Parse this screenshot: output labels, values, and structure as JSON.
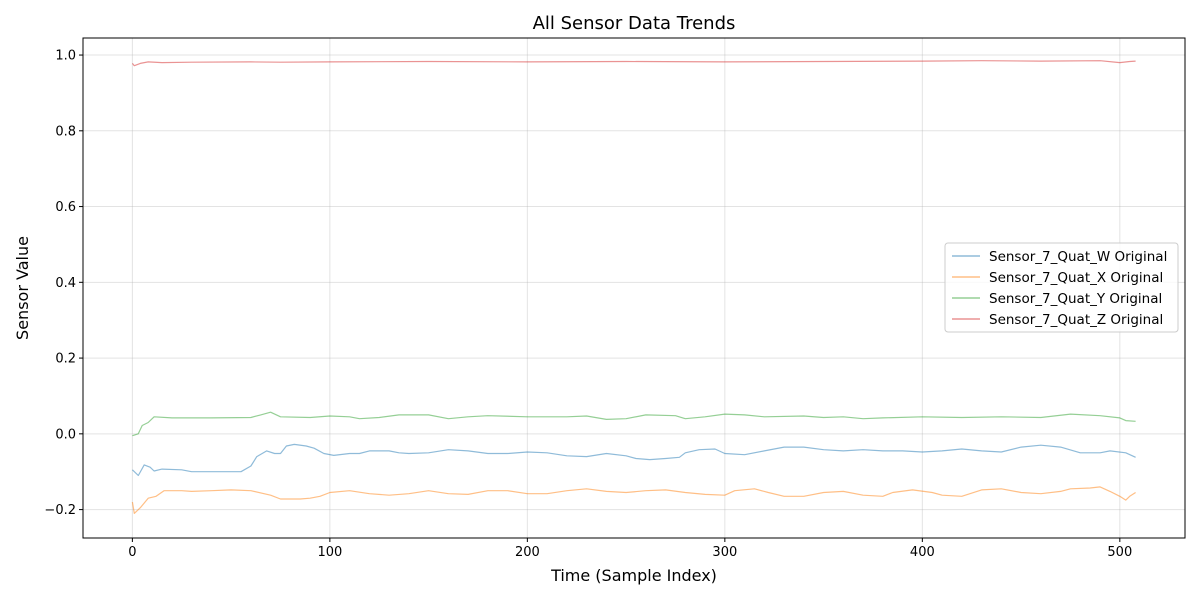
{
  "chart_data": {
    "type": "line",
    "title": "All Sensor Data Trends",
    "xlabel": "Time (Sample Index)",
    "ylabel": "Sensor Value",
    "xlim": [
      -25,
      533
    ],
    "ylim": [
      -0.275,
      1.045
    ],
    "xticks": [
      0,
      100,
      200,
      300,
      400,
      500
    ],
    "yticks": [
      -0.2,
      0.0,
      0.2,
      0.4,
      0.6,
      0.8,
      1.0
    ],
    "ytick_labels": [
      "−0.2",
      "0.0",
      "0.2",
      "0.4",
      "0.6",
      "0.8",
      "1.0"
    ],
    "grid": true,
    "legend_position": "center-right",
    "series": [
      {
        "name": "Sensor_7_Quat_W Original",
        "color": "#1f77b4",
        "points": [
          [
            0,
            -0.095
          ],
          [
            3,
            -0.11
          ],
          [
            6,
            -0.082
          ],
          [
            9,
            -0.088
          ],
          [
            11,
            -0.098
          ],
          [
            15,
            -0.093
          ],
          [
            25,
            -0.095
          ],
          [
            30,
            -0.1
          ],
          [
            40,
            -0.1
          ],
          [
            55,
            -0.1
          ],
          [
            60,
            -0.085
          ],
          [
            63,
            -0.06
          ],
          [
            68,
            -0.045
          ],
          [
            72,
            -0.052
          ],
          [
            75,
            -0.052
          ],
          [
            78,
            -0.032
          ],
          [
            82,
            -0.028
          ],
          [
            88,
            -0.032
          ],
          [
            92,
            -0.038
          ],
          [
            97,
            -0.052
          ],
          [
            102,
            -0.057
          ],
          [
            110,
            -0.052
          ],
          [
            115,
            -0.052
          ],
          [
            120,
            -0.045
          ],
          [
            130,
            -0.045
          ],
          [
            135,
            -0.05
          ],
          [
            140,
            -0.052
          ],
          [
            150,
            -0.05
          ],
          [
            160,
            -0.042
          ],
          [
            170,
            -0.045
          ],
          [
            180,
            -0.052
          ],
          [
            190,
            -0.052
          ],
          [
            200,
            -0.048
          ],
          [
            210,
            -0.05
          ],
          [
            220,
            -0.058
          ],
          [
            230,
            -0.06
          ],
          [
            240,
            -0.052
          ],
          [
            250,
            -0.058
          ],
          [
            255,
            -0.065
          ],
          [
            262,
            -0.068
          ],
          [
            270,
            -0.065
          ],
          [
            277,
            -0.062
          ],
          [
            280,
            -0.05
          ],
          [
            287,
            -0.042
          ],
          [
            295,
            -0.04
          ],
          [
            300,
            -0.052
          ],
          [
            310,
            -0.055
          ],
          [
            320,
            -0.045
          ],
          [
            330,
            -0.035
          ],
          [
            340,
            -0.035
          ],
          [
            350,
            -0.042
          ],
          [
            360,
            -0.045
          ],
          [
            370,
            -0.042
          ],
          [
            380,
            -0.045
          ],
          [
            390,
            -0.045
          ],
          [
            400,
            -0.048
          ],
          [
            410,
            -0.045
          ],
          [
            420,
            -0.04
          ],
          [
            430,
            -0.045
          ],
          [
            440,
            -0.048
          ],
          [
            450,
            -0.035
          ],
          [
            460,
            -0.03
          ],
          [
            470,
            -0.035
          ],
          [
            480,
            -0.05
          ],
          [
            490,
            -0.05
          ],
          [
            495,
            -0.045
          ],
          [
            503,
            -0.05
          ],
          [
            508,
            -0.062
          ]
        ]
      },
      {
        "name": "Sensor_7_Quat_X Original",
        "color": "#ff7f0e",
        "points": [
          [
            0,
            -0.18
          ],
          [
            1,
            -0.21
          ],
          [
            4,
            -0.195
          ],
          [
            8,
            -0.17
          ],
          [
            12,
            -0.165
          ],
          [
            16,
            -0.15
          ],
          [
            25,
            -0.15
          ],
          [
            30,
            -0.152
          ],
          [
            40,
            -0.15
          ],
          [
            50,
            -0.148
          ],
          [
            60,
            -0.15
          ],
          [
            70,
            -0.162
          ],
          [
            75,
            -0.172
          ],
          [
            85,
            -0.172
          ],
          [
            90,
            -0.17
          ],
          [
            95,
            -0.165
          ],
          [
            100,
            -0.155
          ],
          [
            110,
            -0.15
          ],
          [
            120,
            -0.158
          ],
          [
            130,
            -0.162
          ],
          [
            140,
            -0.158
          ],
          [
            150,
            -0.15
          ],
          [
            160,
            -0.158
          ],
          [
            170,
            -0.16
          ],
          [
            180,
            -0.15
          ],
          [
            190,
            -0.15
          ],
          [
            200,
            -0.158
          ],
          [
            210,
            -0.158
          ],
          [
            220,
            -0.15
          ],
          [
            230,
            -0.145
          ],
          [
            240,
            -0.152
          ],
          [
            250,
            -0.155
          ],
          [
            260,
            -0.15
          ],
          [
            270,
            -0.148
          ],
          [
            280,
            -0.155
          ],
          [
            290,
            -0.16
          ],
          [
            300,
            -0.162
          ],
          [
            305,
            -0.15
          ],
          [
            315,
            -0.145
          ],
          [
            322,
            -0.155
          ],
          [
            330,
            -0.165
          ],
          [
            340,
            -0.165
          ],
          [
            350,
            -0.155
          ],
          [
            360,
            -0.152
          ],
          [
            370,
            -0.162
          ],
          [
            380,
            -0.165
          ],
          [
            385,
            -0.155
          ],
          [
            395,
            -0.148
          ],
          [
            405,
            -0.155
          ],
          [
            410,
            -0.162
          ],
          [
            420,
            -0.165
          ],
          [
            430,
            -0.148
          ],
          [
            440,
            -0.145
          ],
          [
            450,
            -0.155
          ],
          [
            460,
            -0.158
          ],
          [
            470,
            -0.152
          ],
          [
            475,
            -0.145
          ],
          [
            485,
            -0.143
          ],
          [
            490,
            -0.14
          ],
          [
            495,
            -0.152
          ],
          [
            500,
            -0.165
          ],
          [
            503,
            -0.175
          ],
          [
            505,
            -0.165
          ],
          [
            508,
            -0.155
          ]
        ]
      },
      {
        "name": "Sensor_7_Quat_Y Original",
        "color": "#2ca02c",
        "points": [
          [
            0,
            -0.005
          ],
          [
            3,
            0.0
          ],
          [
            5,
            0.022
          ],
          [
            8,
            0.03
          ],
          [
            11,
            0.045
          ],
          [
            20,
            0.042
          ],
          [
            40,
            0.042
          ],
          [
            60,
            0.043
          ],
          [
            65,
            0.05
          ],
          [
            70,
            0.057
          ],
          [
            75,
            0.045
          ],
          [
            90,
            0.043
          ],
          [
            100,
            0.047
          ],
          [
            110,
            0.045
          ],
          [
            115,
            0.04
          ],
          [
            125,
            0.043
          ],
          [
            135,
            0.05
          ],
          [
            150,
            0.05
          ],
          [
            160,
            0.04
          ],
          [
            170,
            0.045
          ],
          [
            180,
            0.048
          ],
          [
            200,
            0.045
          ],
          [
            220,
            0.045
          ],
          [
            230,
            0.047
          ],
          [
            240,
            0.038
          ],
          [
            250,
            0.04
          ],
          [
            260,
            0.05
          ],
          [
            275,
            0.048
          ],
          [
            280,
            0.04
          ],
          [
            290,
            0.045
          ],
          [
            300,
            0.052
          ],
          [
            310,
            0.05
          ],
          [
            320,
            0.045
          ],
          [
            340,
            0.047
          ],
          [
            350,
            0.043
          ],
          [
            360,
            0.045
          ],
          [
            370,
            0.04
          ],
          [
            380,
            0.042
          ],
          [
            400,
            0.045
          ],
          [
            420,
            0.043
          ],
          [
            440,
            0.045
          ],
          [
            460,
            0.043
          ],
          [
            475,
            0.052
          ],
          [
            490,
            0.048
          ],
          [
            500,
            0.042
          ],
          [
            503,
            0.035
          ],
          [
            508,
            0.033
          ]
        ]
      },
      {
        "name": "Sensor_7_Quat_Z Original",
        "color": "#d62728",
        "points": [
          [
            0,
            0.978
          ],
          [
            1,
            0.972
          ],
          [
            4,
            0.978
          ],
          [
            8,
            0.982
          ],
          [
            15,
            0.98
          ],
          [
            30,
            0.981
          ],
          [
            60,
            0.982
          ],
          [
            75,
            0.981
          ],
          [
            100,
            0.982
          ],
          [
            150,
            0.983
          ],
          [
            200,
            0.982
          ],
          [
            250,
            0.983
          ],
          [
            300,
            0.982
          ],
          [
            350,
            0.983
          ],
          [
            400,
            0.984
          ],
          [
            430,
            0.985
          ],
          [
            460,
            0.984
          ],
          [
            490,
            0.985
          ],
          [
            500,
            0.98
          ],
          [
            505,
            0.983
          ],
          [
            508,
            0.984
          ]
        ]
      }
    ]
  }
}
